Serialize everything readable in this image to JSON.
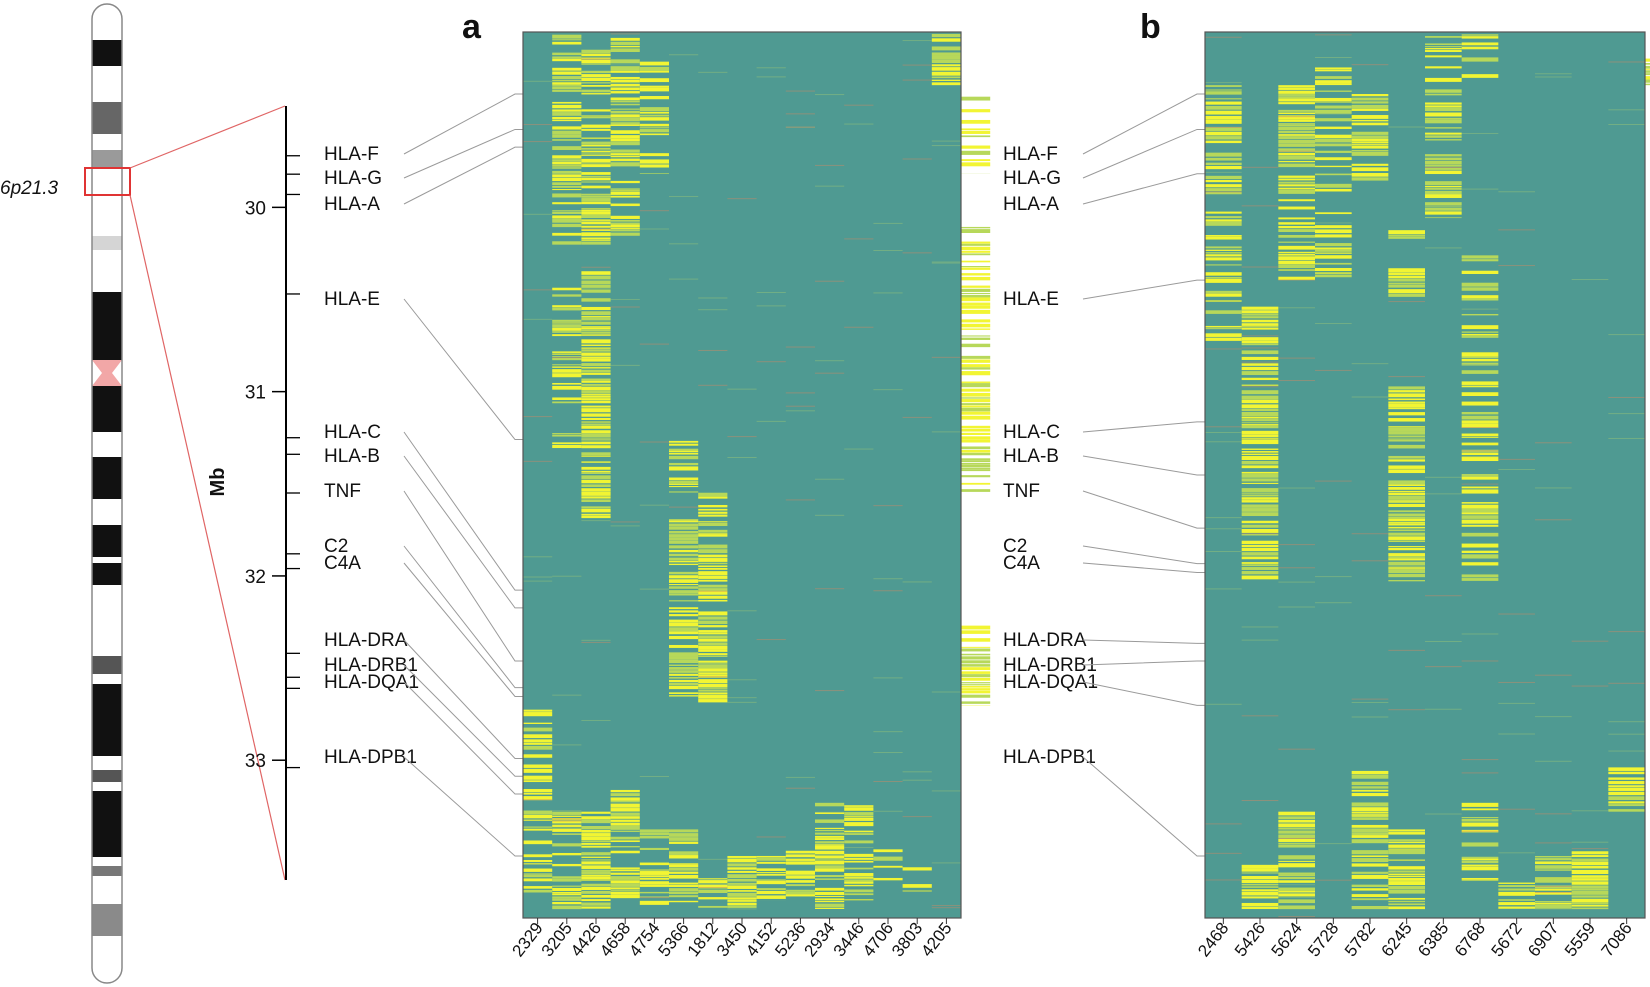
{
  "colors": {
    "background_cell": "#4f9a92",
    "highlight_cell": "#f2f533",
    "mid_cell": "#b7d85a",
    "connector": "#9a9a9a",
    "zoom": "#e06565",
    "centromere": "#f2a7a7"
  },
  "chromosome": {
    "band_label": "6p21.3"
  },
  "axis": {
    "title": "Mb",
    "ticks": [
      "30",
      "31",
      "32",
      "33"
    ],
    "range": [
      29.45,
      33.65
    ]
  },
  "genes": [
    {
      "name": "HLA-F",
      "pos": 29.72
    },
    {
      "name": "HLA-G",
      "pos": 29.82
    },
    {
      "name": "HLA-A",
      "pos": 29.93
    },
    {
      "name": "HLA-E",
      "pos": 30.47
    },
    {
      "name": "HLA-C",
      "pos": 31.25
    },
    {
      "name": "HLA-B",
      "pos": 31.34
    },
    {
      "name": "TNF",
      "pos": 31.55
    },
    {
      "name": "C2",
      "pos": 31.88
    },
    {
      "name": "C4A",
      "pos": 31.96
    },
    {
      "name": "HLA-DRA",
      "pos": 32.42
    },
    {
      "name": "HLA-DRB1",
      "pos": 32.55
    },
    {
      "name": "HLA-DQA1",
      "pos": 32.61
    },
    {
      "name": "HLA-DPB1",
      "pos": 33.04
    }
  ],
  "panel_a": {
    "letter": "a",
    "columns": [
      "2329",
      "3205",
      "4426",
      "4658",
      "4754",
      "5366",
      "1812",
      "3450",
      "4152",
      "5236",
      "2934",
      "3446",
      "4706",
      "3803",
      "4205"
    ],
    "gene_rows": [
      0.07,
      0.11,
      0.13,
      0.46,
      0.63,
      0.65,
      0.71,
      0.74,
      0.75,
      0.82,
      0.84,
      0.86,
      0.93
    ]
  },
  "panel_b": {
    "letter": "b",
    "columns": [
      "2468",
      "5426",
      "5624",
      "5728",
      "5782",
      "6245",
      "6385",
      "6768",
      "5672",
      "6907",
      "5559",
      "7086"
    ],
    "gene_rows": [
      0.07,
      0.11,
      0.16,
      0.28,
      0.44,
      0.5,
      0.56,
      0.6,
      0.61,
      0.69,
      0.71,
      0.76,
      0.93
    ]
  }
}
